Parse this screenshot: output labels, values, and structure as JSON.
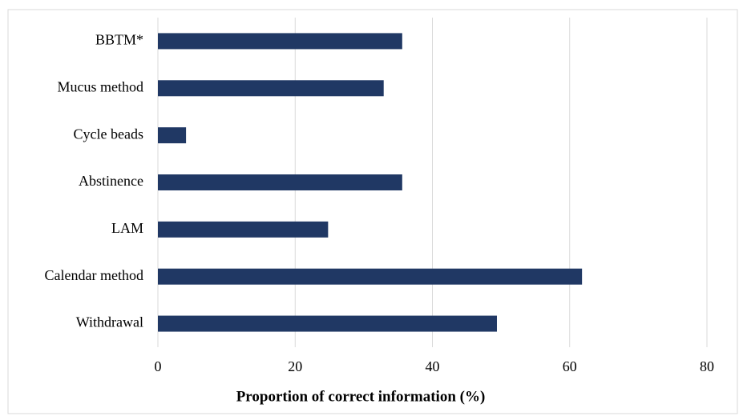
{
  "chart_data": {
    "type": "bar",
    "orientation": "horizontal",
    "xlabel": "Proportion of correct information (%)",
    "categories": [
      "BBTM*",
      "Mucus method",
      "Cycle beads",
      "Abstinence",
      "LAM",
      "Calendar method",
      "Withdrawal"
    ],
    "values": [
      35.6,
      32.9,
      4.1,
      35.6,
      24.8,
      61.8,
      49.4
    ],
    "color": "#203864",
    "xlim": [
      0,
      80
    ],
    "xticks": [
      0,
      20,
      40,
      60,
      80
    ],
    "grid": true
  }
}
